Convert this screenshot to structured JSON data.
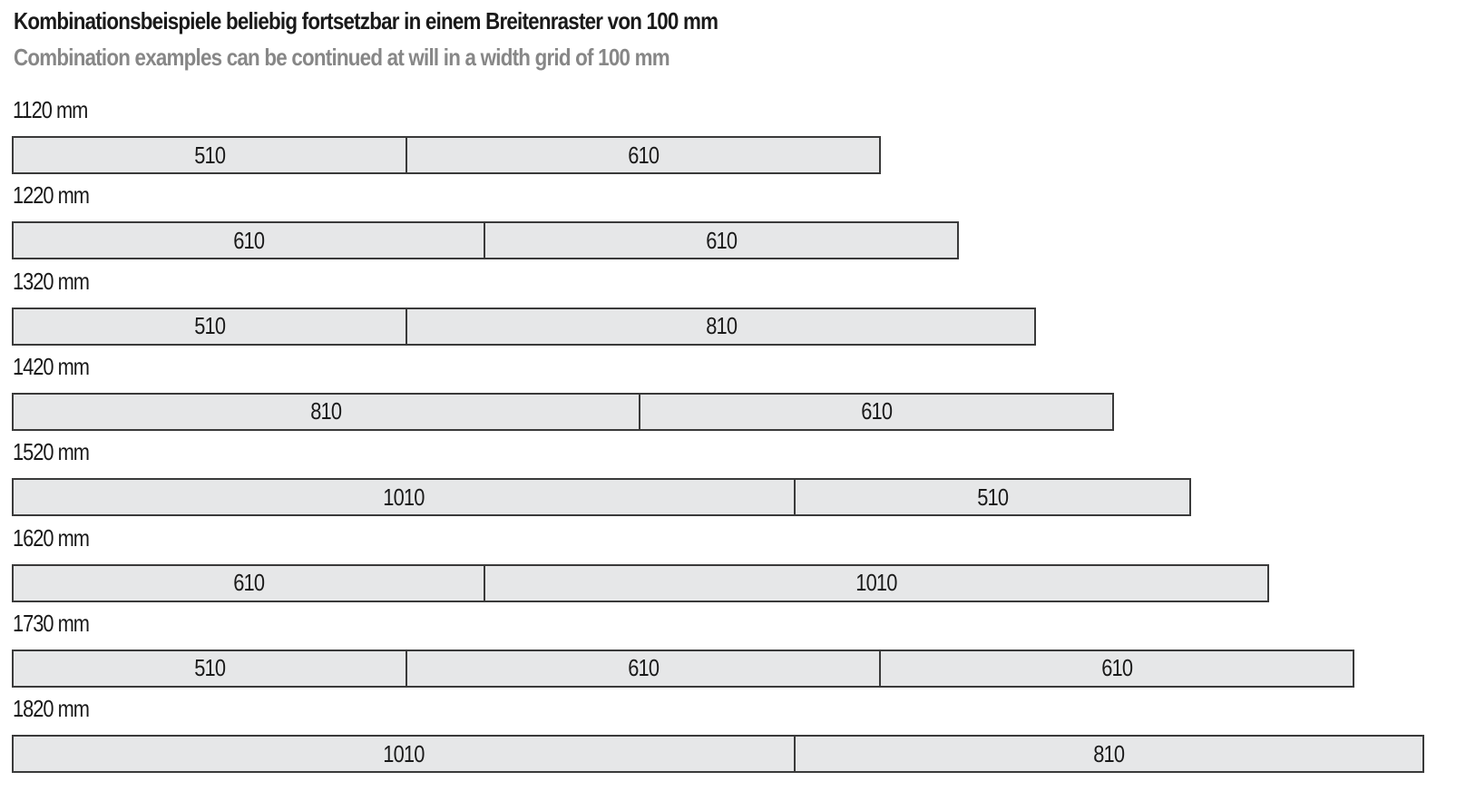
{
  "title_de": "Kombinationsbeispiele beliebig fortsetzbar in einem Breitenraster von 100 mm",
  "title_en": "Combination examples can be continued at will in a width grid of 100 mm",
  "colors": {
    "segment_fill": "#e6e7e8",
    "segment_border": "#3a3a3a",
    "title_secondary": "#878787"
  },
  "combinations": [
    {
      "label": "1120 mm",
      "segments": [
        510,
        610
      ]
    },
    {
      "label": "1220 mm",
      "segments": [
        610,
        610
      ]
    },
    {
      "label": "1320 mm",
      "segments": [
        510,
        810
      ]
    },
    {
      "label": "1420 mm",
      "segments": [
        810,
        610
      ]
    },
    {
      "label": "1520 mm",
      "segments": [
        1010,
        510
      ]
    },
    {
      "label": "1620 mm",
      "segments": [
        610,
        1010
      ]
    },
    {
      "label": "1730 mm",
      "segments": [
        510,
        610,
        610
      ]
    },
    {
      "label": "1820 mm",
      "segments": [
        1010,
        810
      ]
    }
  ]
}
